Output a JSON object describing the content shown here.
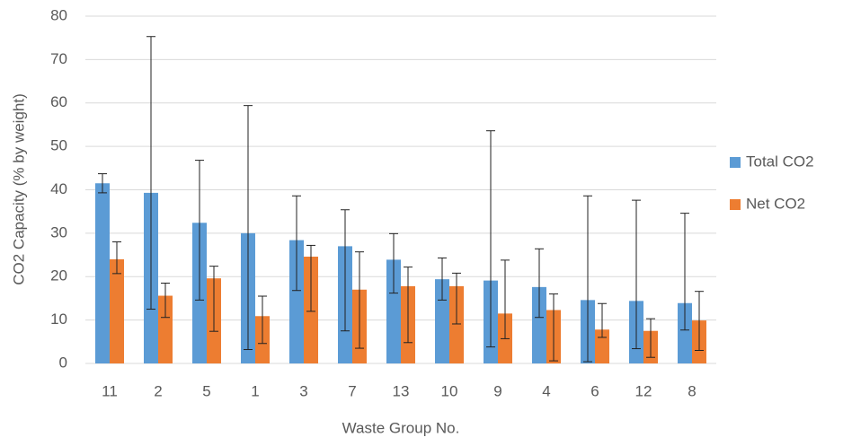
{
  "chart_data": {
    "type": "bar",
    "x_label": "Waste Group No.",
    "y_label": "CO2 Capacity (% by weight)",
    "categories": [
      "11",
      "2",
      "5",
      "1",
      "3",
      "7",
      "13",
      "10",
      "9",
      "4",
      "6",
      "12",
      "8"
    ],
    "series": [
      {
        "name": "Total CO2",
        "color": "#5b9bd5",
        "values": [
          41.5,
          39.3,
          32.4,
          30,
          28.4,
          27,
          23.9,
          19.4,
          19.1,
          17.6,
          14.6,
          14.4,
          13.9
        ],
        "error_low": [
          39.3,
          12.5,
          14.6,
          3.2,
          16.8,
          7.5,
          16.2,
          14.6,
          3.8,
          10.6,
          0.4,
          3.4,
          7.7
        ],
        "error_high": [
          43.7,
          75.3,
          46.8,
          59.4,
          38.6,
          35.4,
          29.9,
          24.3,
          53.6,
          26.4,
          38.6,
          37.6,
          34.6
        ]
      },
      {
        "name": "Net CO2",
        "color": "#ed7d31",
        "values": [
          24,
          15.6,
          19.6,
          10.9,
          24.6,
          17,
          17.8,
          17.8,
          11.5,
          12.3,
          7.8,
          7.5,
          9.9
        ],
        "error_low": [
          20.7,
          10.6,
          7.4,
          4.6,
          12,
          3.5,
          4.8,
          9.1,
          5.7,
          0.6,
          6,
          1.4,
          3
        ],
        "error_high": [
          28,
          18.5,
          22.4,
          15.5,
          27.2,
          25.7,
          22.2,
          20.8,
          23.8,
          16,
          13.8,
          10.3,
          16.6
        ]
      }
    ],
    "ylim": [
      0,
      80
    ],
    "yticks": [
      0,
      10,
      20,
      30,
      40,
      50,
      60,
      70,
      80
    ],
    "grid": true,
    "legend": "right"
  }
}
